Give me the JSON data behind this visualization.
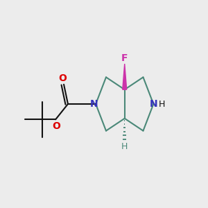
{
  "background_color": "#ececec",
  "bond_color": "#4a8878",
  "nitrogen_color": "#3333bb",
  "oxygen_color": "#dd0000",
  "fluorine_color": "#cc33aa",
  "carbon_color": "#111111",
  "wedge_color_F": "#cc33aa",
  "wedge_color_H": "#4a8878",
  "line_width": 1.5,
  "figsize": [
    3.0,
    3.0
  ],
  "dpi": 100,
  "xlim": [
    0.0,
    10.0
  ],
  "ylim": [
    1.5,
    9.5
  ]
}
